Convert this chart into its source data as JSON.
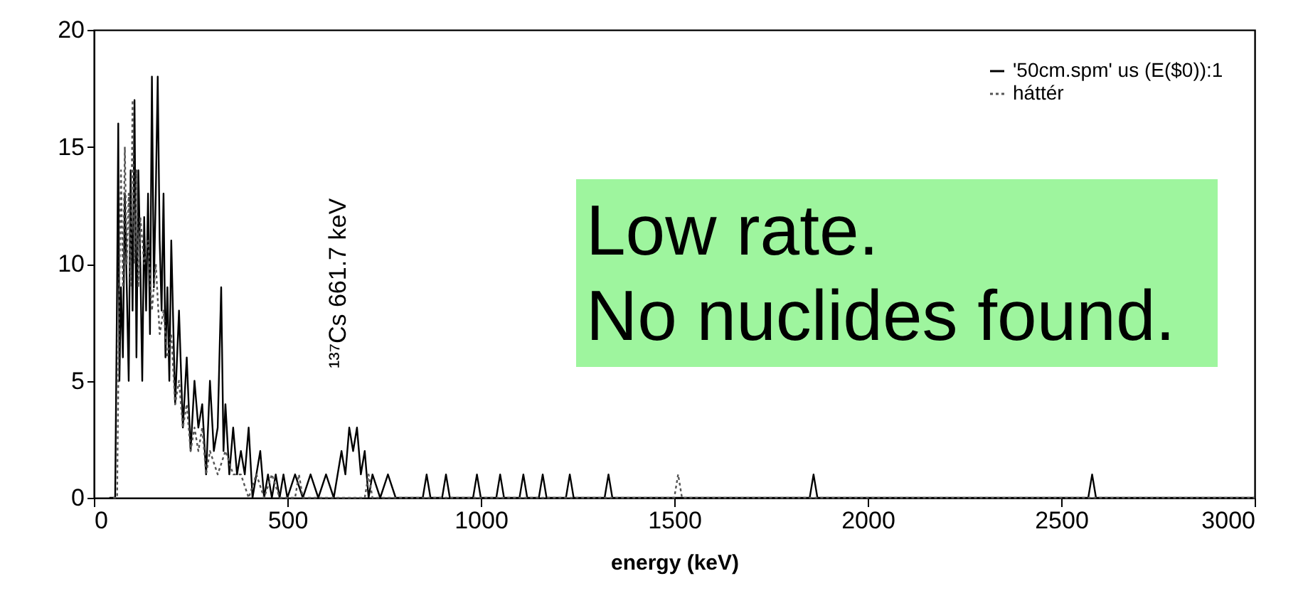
{
  "chart_data": {
    "type": "line",
    "xlabel": "energy (keV)",
    "xlim": [
      0,
      3000
    ],
    "xticks": [
      0,
      500,
      1000,
      1500,
      2000,
      2500,
      3000
    ],
    "ylim": [
      0,
      20
    ],
    "yticks": [
      0,
      5,
      10,
      15,
      20
    ],
    "grid": false,
    "legend": "top right",
    "marker": "none",
    "annotations": [
      "¹³⁷Cs 661.7 keV",
      "Low rate.\nNo nuclides found."
    ],
    "series": [
      {
        "name": "'50cm.spm' us (E($0)):1",
        "color": "#000000",
        "line_style": "solid",
        "x": [
          40,
          55,
          60,
          63,
          66,
          70,
          75,
          80,
          85,
          90,
          95,
          100,
          105,
          110,
          115,
          120,
          125,
          130,
          135,
          140,
          145,
          150,
          155,
          160,
          165,
          170,
          175,
          180,
          185,
          190,
          195,
          200,
          210,
          220,
          230,
          240,
          250,
          260,
          270,
          280,
          290,
          300,
          310,
          320,
          329,
          335,
          340,
          350,
          360,
          370,
          380,
          390,
          400,
          410,
          420,
          430,
          440,
          450,
          460,
          470,
          480,
          490,
          500,
          520,
          540,
          560,
          580,
          600,
          620,
          640,
          650,
          660,
          670,
          680,
          690,
          700,
          710,
          720,
          740,
          760,
          780,
          850,
          860,
          870,
          900,
          910,
          920,
          980,
          990,
          1000,
          1040,
          1050,
          1060,
          1100,
          1110,
          1120,
          1150,
          1160,
          1170,
          1220,
          1230,
          1240,
          1320,
          1330,
          1340,
          1850,
          1860,
          1870,
          2570,
          2580,
          2590,
          3000
        ],
        "values": [
          0,
          0,
          9,
          16,
          5,
          9,
          6,
          13,
          9,
          5,
          14,
          8,
          17,
          6,
          14,
          10,
          5,
          12,
          8,
          13,
          7,
          18,
          9,
          13,
          18,
          11,
          8,
          13,
          6,
          9,
          5,
          11,
          4,
          8,
          3,
          6,
          2,
          5,
          3,
          4,
          1,
          5,
          2,
          3,
          9,
          2,
          4,
          1,
          3,
          1,
          2,
          1,
          3,
          0,
          1,
          2,
          0,
          1,
          0,
          1,
          0,
          1,
          0,
          1,
          0,
          1,
          0,
          1,
          0,
          2,
          1,
          3,
          2,
          3,
          1,
          2,
          0,
          1,
          0,
          1,
          0,
          0,
          1,
          0,
          0,
          1,
          0,
          0,
          1,
          0,
          0,
          1,
          0,
          0,
          1,
          0,
          0,
          1,
          0,
          0,
          1,
          0,
          0,
          1,
          0,
          0,
          1,
          0,
          0,
          1,
          0,
          0
        ]
      },
      {
        "name": "háttér",
        "color": "#555555",
        "line_style": "dotted",
        "x": [
          50,
          60,
          65,
          70,
          75,
          80,
          85,
          90,
          95,
          100,
          105,
          110,
          115,
          120,
          130,
          140,
          150,
          160,
          170,
          180,
          190,
          200,
          210,
          220,
          230,
          240,
          250,
          260,
          270,
          280,
          290,
          300,
          320,
          340,
          360,
          380,
          400,
          420,
          440,
          460,
          480,
          520,
          530,
          540,
          700,
          710,
          720,
          1500,
          1510,
          1520,
          3000
        ],
        "values": [
          0,
          0,
          8,
          14,
          9,
          15,
          10,
          13,
          9,
          17,
          10,
          14,
          9,
          12,
          10,
          11,
          8,
          10,
          7,
          8,
          6,
          7,
          4,
          5,
          3,
          4,
          2,
          3,
          2,
          3,
          1,
          2,
          1,
          2,
          1,
          1,
          0,
          1,
          0,
          1,
          0,
          0,
          1,
          0,
          0,
          1,
          0,
          0,
          1,
          0,
          0
        ]
      }
    ]
  }
}
